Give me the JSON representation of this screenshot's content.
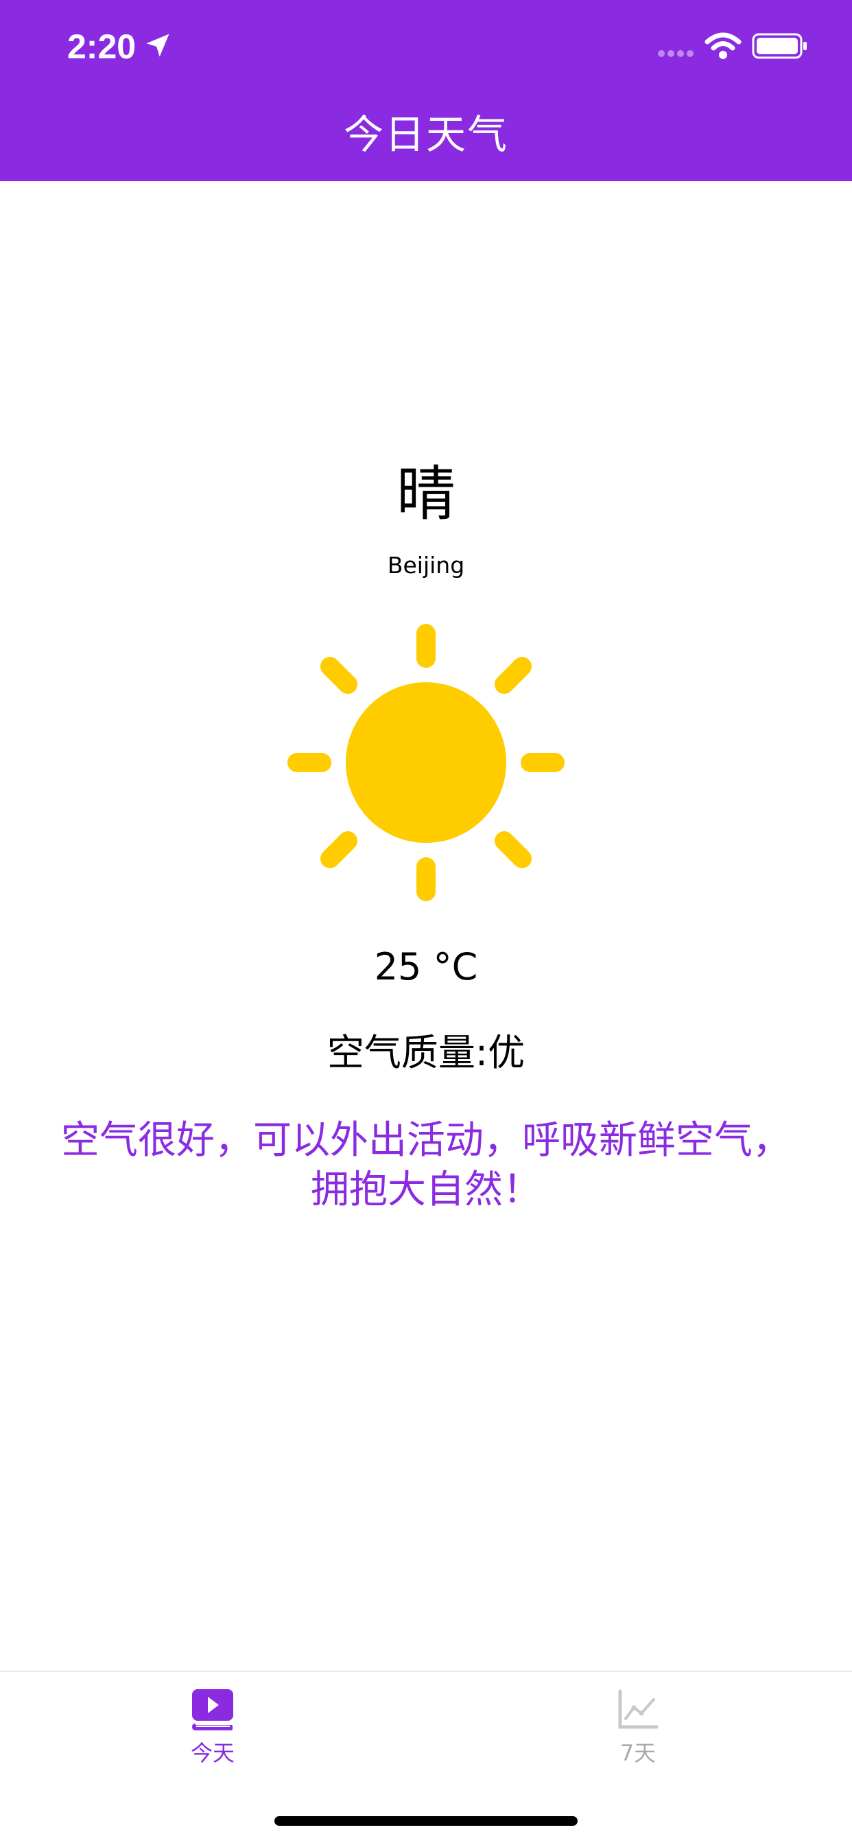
{
  "status_bar": {
    "time": "2:20"
  },
  "nav": {
    "title": "今日天气"
  },
  "weather": {
    "condition": "晴",
    "city": "Beijing",
    "temperature": "25 °C",
    "air_quality": "空气质量:优",
    "advice": "空气很好，可以外出活动，呼吸新鲜空气，拥抱大自然！"
  },
  "tabs": [
    {
      "label": "今天",
      "active": true
    },
    {
      "label": "7天",
      "active": false
    }
  ],
  "colors": {
    "accent": "#8a2be2",
    "sun": "#ffcc00",
    "inactive_tab": "#c7c7cc"
  },
  "icons": {
    "weather": "sun-icon",
    "today_tab": "today-book-icon",
    "week_tab": "line-chart-icon"
  }
}
